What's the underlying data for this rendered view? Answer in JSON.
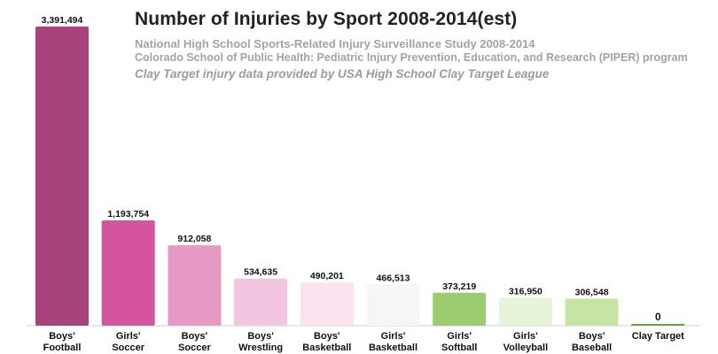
{
  "chart_data": {
    "type": "bar",
    "title": "Number of Injuries by Sport 2008-2014(est)",
    "subtitles": [
      "National High School Sports-Related Injury Surveillance Study 2008-2014",
      "Colorado School of Public Health: Pediatric Injury Prevention, Education, and Research (PIPER) program",
      "Clay Target injury data provided by USA High School Clay Target League"
    ],
    "categories": [
      [
        "Boys'",
        "Football"
      ],
      [
        "Girls'",
        "Soccer"
      ],
      [
        "Boys'",
        "Soccer"
      ],
      [
        "Boys'",
        "Wrestling"
      ],
      [
        "Boys'",
        "Basketball"
      ],
      [
        "Girls'",
        "Basketball"
      ],
      [
        "Girls'",
        "Softball"
      ],
      [
        "Girls'",
        "Volleyball"
      ],
      [
        "Boys'",
        "Baseball"
      ],
      [
        "Clay Target"
      ]
    ],
    "values": [
      3391494,
      1193754,
      912058,
      534635,
      490201,
      466513,
      373219,
      316950,
      306548,
      0
    ],
    "value_labels": [
      "3,391,494",
      "1,193,754",
      "912,058",
      "534,635",
      "490,201",
      "466,513",
      "373,219",
      "316,950",
      "306,548",
      "0"
    ],
    "colors": [
      "#a8427c",
      "#d4559d",
      "#e599c4",
      "#f3c5e0",
      "#fbe3f0",
      "#f6f6f6",
      "#9ccc6d",
      "#e6f4d8",
      "#c6e5a2",
      "#6ca14a"
    ],
    "ylim": [
      0,
      3391494
    ],
    "grid": false,
    "legend": "none"
  }
}
